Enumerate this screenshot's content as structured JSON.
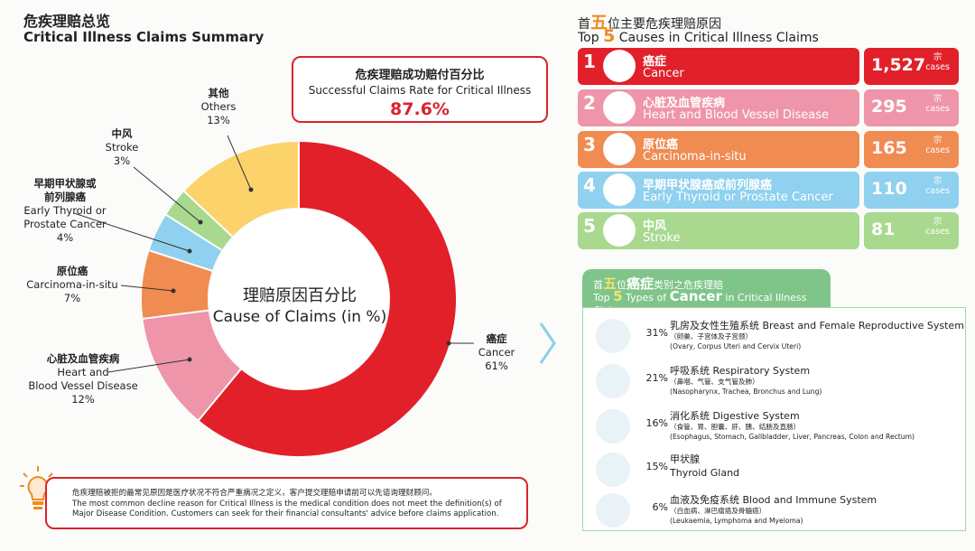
{
  "header": {
    "title_zh": "危疾理赔总览",
    "title_en": "Critical Illness Claims Summary"
  },
  "success_rate": {
    "label_zh": "危疾理赔成功赔付百分比",
    "label_en": "Successful Claims Rate for Critical Illness",
    "value": "87.6%"
  },
  "donut_center": {
    "zh": "理赔原因百分比",
    "en": "Cause of Claims (in %)"
  },
  "chart_data": {
    "type": "pie",
    "title": "理赔原因百分比 Cause of Claims (in %)",
    "slices": [
      {
        "zh": "癌症",
        "en": "Cancer",
        "value": 61,
        "label": "61%",
        "color": "#e2202a"
      },
      {
        "zh": "心脏及血管疾病",
        "en": "Heart and Blood Vessel Disease",
        "value": 12,
        "label": "12%",
        "color": "#ee95a9"
      },
      {
        "zh": "原位癌",
        "en": "Carcinoma-in-situ",
        "value": 7,
        "label": "7%",
        "color": "#f08b52"
      },
      {
        "zh": "早期甲状腺或前列腺癌",
        "en": "Early Thyroid or Prostate Cancer",
        "value": 4,
        "label": "4%",
        "color": "#8fd1ee"
      },
      {
        "zh": "中风",
        "en": "Stroke",
        "value": 3,
        "label": "3%",
        "color": "#a8d98f"
      },
      {
        "zh": "其他",
        "en": "Others",
        "value": 13,
        "label": "13%",
        "color": "#fbd36a"
      }
    ]
  },
  "pie_labels": {
    "cancer": {
      "zh": "癌症",
      "en": "Cancer",
      "pct": "61%"
    },
    "heart": {
      "zh": "心脏及血管疾病",
      "en1": "Heart and",
      "en2": "Blood Vessel Disease",
      "pct": "12%"
    },
    "cis": {
      "zh": "原位癌",
      "en": "Carcinoma-in-situ",
      "pct": "7%"
    },
    "thyroid": {
      "zh1": "早期甲状腺或",
      "zh2": "前列腺癌",
      "en1": "Early Thyroid or",
      "en2": "Prostate Cancer",
      "pct": "4%"
    },
    "stroke": {
      "zh": "中风",
      "en": "Stroke",
      "pct": "3%"
    },
    "others": {
      "zh": "其他",
      "en": "Others",
      "pct": "13%"
    }
  },
  "note": {
    "line1": "危疾理赔被拒的最常见原因是医疗状况不符合严重病况之定义，客户提交理赔申请前可以先谘询理财顾问。",
    "line2": "The most common decline reason for Critical Illness is the medical condition does not meet the definition(s) of",
    "line3": "Major Disease Condition. Customers can seek for their financial consultants' advice before claims application."
  },
  "top5": {
    "title_prefix_zh": "首",
    "title_num_zh": "五",
    "title_suffix_zh": "位主要危疾理赔原因",
    "title_prefix_en": "Top",
    "title_num_en": "5",
    "title_suffix_en": "Causes in Critical Illness Claims",
    "unit_zh": "宗",
    "unit_en": "cases",
    "rows": [
      {
        "rank": "1",
        "zh": "癌症",
        "en": "Cancer",
        "count": "1,527",
        "color": "#e2202a",
        "icon": "cancer-cell-icon"
      },
      {
        "rank": "2",
        "zh": "心脏及血管疾病",
        "en": "Heart and Blood Vessel Disease",
        "count": "295",
        "color": "#ee95a9",
        "icon": "heart-icon"
      },
      {
        "rank": "3",
        "zh": "原位癌",
        "en": "Carcinoma-in-situ",
        "count": "165",
        "color": "#f08b52",
        "icon": "cell-icon"
      },
      {
        "rank": "4",
        "zh": "早期甲状腺癌或前列腺癌",
        "en": "Early Thyroid or Prostate Cancer",
        "count": "110",
        "color": "#8fd1ee",
        "icon": "thyroid-icon"
      },
      {
        "rank": "5",
        "zh": "中风",
        "en": "Stroke",
        "count": "81",
        "color": "#a8d98f",
        "icon": "brain-icon"
      }
    ]
  },
  "top5_types": {
    "prefix_zh": "首",
    "num_zh": "五",
    "mid_zh": "位",
    "cancer_zh": "癌症",
    "suffix_zh": "类别之危疾理赔",
    "prefix_en": "Top",
    "num_en": "5",
    "mid_en": "Types of",
    "cancer_en": "Cancer",
    "suffix_en": "in Critical Illness Claims",
    "rows": [
      {
        "pct": "31%",
        "name": "乳房及女性生殖系统 Breast and Female Reproductive System",
        "sub1": "（卵巢、子宫体及子宫颈）",
        "sub2": "(Ovary, Corpus Uteri and Cervix Uteri)",
        "icon": "uterus-icon"
      },
      {
        "pct": "21%",
        "name": "呼吸系统 Respiratory System",
        "sub1": "（鼻咽、气管、支气管及肺）",
        "sub2": "(Nasopharynx, Trachea, Bronchus and Lung)",
        "icon": "lungs-icon"
      },
      {
        "pct": "16%",
        "name": "消化系统 Digestive System",
        "sub1": "（食管、胃、胆囊、肝、胰、结肠及直肠）",
        "sub2": "(Esophagus, Stomach, Gallbladder, Liver, Pancreas, Colon and Rectum)",
        "icon": "stomach-icon"
      },
      {
        "pct": "15%",
        "name": "甲状腺",
        "sub1": "Thyroid Gland",
        "sub2": "",
        "icon": "thyroid-gland-icon"
      },
      {
        "pct": "6%",
        "name": "血液及免疫系统 Blood and Immune System",
        "sub1": "（白血病、淋巴瘤癌及骨髓癌）",
        "sub2": "(Leukaemia, Lymphoma and Myeloma)",
        "icon": "blood-drop-icon"
      }
    ]
  }
}
